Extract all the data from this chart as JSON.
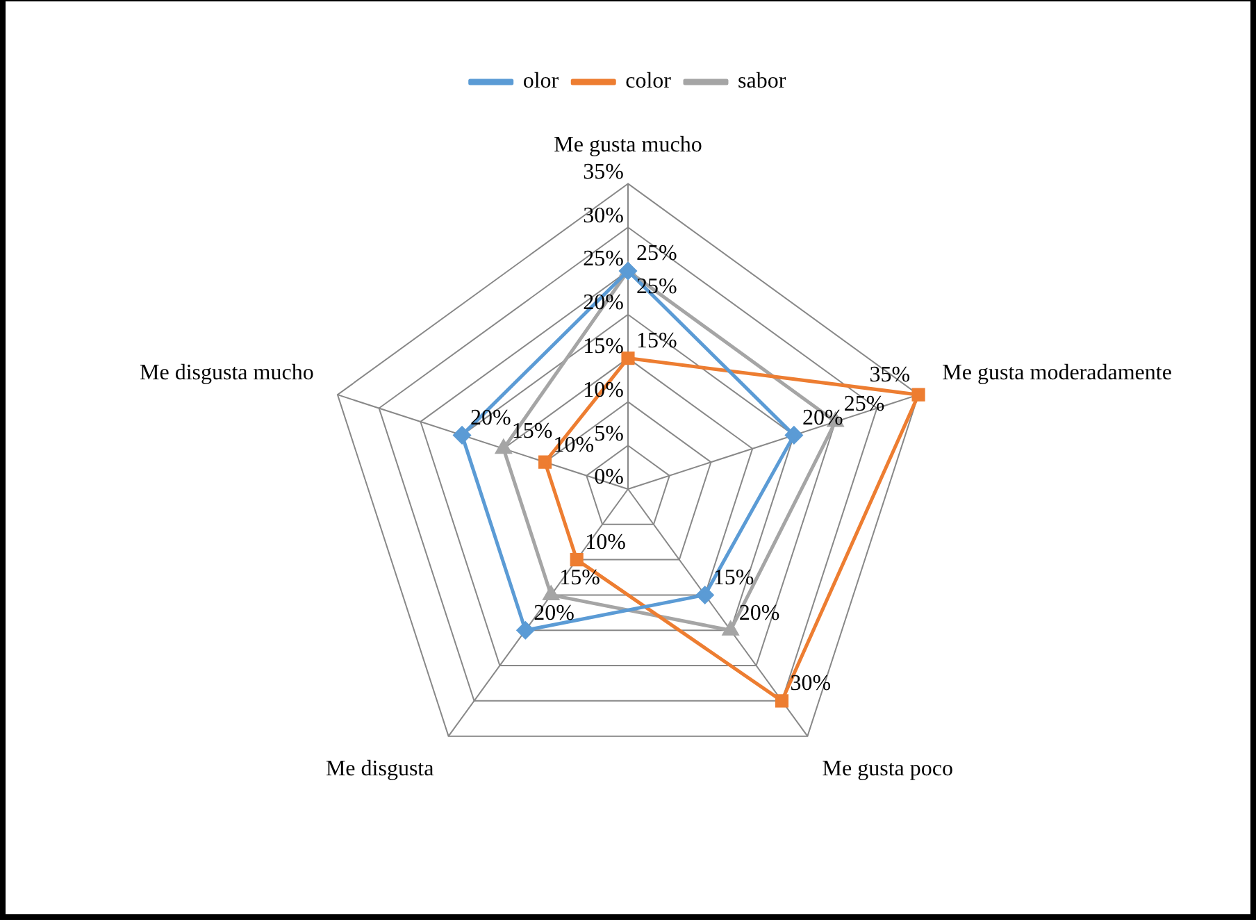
{
  "chart_data": {
    "type": "radar",
    "categories": [
      "Me gusta mucho",
      "Me gusta moderadamente",
      "Me gusta poco",
      "Me disgusta",
      "Me disgusta mucho"
    ],
    "series": [
      {
        "name": "olor",
        "color": "#5b9bd5",
        "marker": "diamond",
        "values": [
          25,
          20,
          15,
          20,
          20
        ],
        "value_labels": [
          "25%",
          "20%",
          "15%",
          "20%",
          "20%"
        ]
      },
      {
        "name": "color",
        "color": "#ed7d31",
        "marker": "square",
        "values": [
          15,
          35,
          30,
          10,
          10
        ],
        "value_labels": [
          "15%",
          "35%",
          "30%",
          "10%",
          "10%"
        ]
      },
      {
        "name": "sabor",
        "color": "#a5a5a5",
        "marker": "triangle",
        "values": [
          25,
          25,
          20,
          15,
          15
        ],
        "value_labels": [
          "25%",
          "25%",
          "20%",
          "15%",
          "15%"
        ]
      }
    ],
    "ylim": [
      0,
      35
    ],
    "yticks": [
      {
        "value": 0,
        "label": "0%"
      },
      {
        "value": 5,
        "label": "5%"
      },
      {
        "value": 10,
        "label": "10%"
      },
      {
        "value": 15,
        "label": "15%"
      },
      {
        "value": 20,
        "label": "20%"
      },
      {
        "value": 25,
        "label": "25%"
      },
      {
        "value": 30,
        "label": "30%"
      },
      {
        "value": 35,
        "label": "35%"
      }
    ],
    "grid": true,
    "legend": "top"
  }
}
